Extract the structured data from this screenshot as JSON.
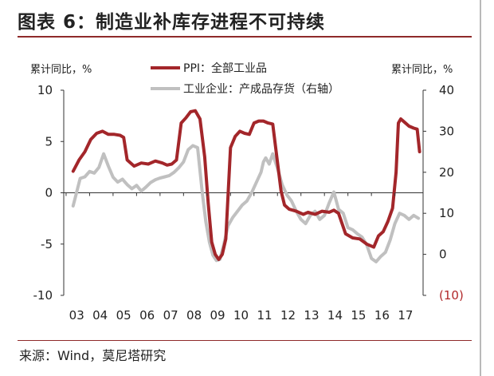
{
  "header": {
    "title": "图表 6：制造业补库存进程不可持续"
  },
  "footer": {
    "source": "来源：Wind，莫尼塔研究"
  },
  "chart_data": {
    "type": "line",
    "ylabel_left": "累计同比，%",
    "ylabel_right": "累计同比，%",
    "legend_position": "top-center",
    "grid": false,
    "x_tick_labels": [
      "03",
      "04",
      "05",
      "06",
      "07",
      "08",
      "09",
      "10",
      "11",
      "12",
      "13",
      "14",
      "15",
      "16",
      "17"
    ],
    "y_left": {
      "lim": [
        -10,
        10
      ],
      "ticks": [
        -10,
        -5,
        0,
        5,
        10
      ],
      "tick_labels": [
        "-10",
        "-5",
        "0",
        "5",
        "10"
      ]
    },
    "y_right": {
      "lim": [
        -10,
        40
      ],
      "ticks": [
        -10,
        0,
        10,
        20,
        30,
        40
      ],
      "tick_labels": [
        "(10)",
        "0",
        "10",
        "20",
        "30",
        "40"
      ]
    },
    "series": [
      {
        "name": "PPI：全部工业品",
        "axis": "left",
        "color": "#a3262a",
        "x": [
          2003.0,
          2003.25,
          2003.5,
          2003.75,
          2004.0,
          2004.25,
          2004.5,
          2004.75,
          2005.0,
          2005.15,
          2005.3,
          2005.6,
          2005.9,
          2006.2,
          2006.5,
          2006.8,
          2007.0,
          2007.2,
          2007.4,
          2007.6,
          2007.8,
          2008.0,
          2008.2,
          2008.4,
          2008.6,
          2008.75,
          2008.9,
          2009.05,
          2009.2,
          2009.35,
          2009.5,
          2009.7,
          2009.9,
          2010.1,
          2010.3,
          2010.5,
          2010.7,
          2010.9,
          2011.1,
          2011.3,
          2011.5,
          2011.7,
          2011.85,
          2012.0,
          2012.2,
          2012.5,
          2012.8,
          2013.0,
          2013.3,
          2013.6,
          2013.9,
          2014.1,
          2014.3,
          2014.6,
          2014.9,
          2015.2,
          2015.5,
          2015.8,
          2016.0,
          2016.2,
          2016.4,
          2016.6,
          2016.75,
          2016.85,
          2016.95,
          2017.1,
          2017.3,
          2017.5,
          2017.65,
          2017.75
        ],
        "values": [
          2.1,
          3.2,
          4.0,
          5.2,
          5.8,
          6.0,
          5.7,
          5.7,
          5.6,
          5.4,
          3.2,
          2.6,
          2.9,
          2.8,
          3.1,
          2.9,
          2.7,
          2.8,
          3.2,
          6.8,
          7.3,
          7.9,
          8.0,
          7.2,
          3.5,
          -1.0,
          -4.8,
          -6.0,
          -6.5,
          -6.0,
          -4.5,
          4.4,
          5.5,
          6.0,
          5.8,
          5.7,
          6.8,
          7.0,
          7.0,
          6.8,
          6.7,
          3.0,
          0.2,
          -1.2,
          -1.6,
          -1.8,
          -2.1,
          -1.9,
          -2.1,
          -1.8,
          -1.9,
          -1.7,
          -2.0,
          -4.0,
          -4.4,
          -4.5,
          -5.0,
          -5.3,
          -4.2,
          -3.8,
          -2.8,
          -1.5,
          2.0,
          6.8,
          7.2,
          6.9,
          6.5,
          6.3,
          6.2,
          4.0
        ]
      },
      {
        "name": "工业企业：产成品存货（右轴）",
        "axis": "right",
        "color": "#c0c0c0",
        "x": [
          2003.0,
          2003.1,
          2003.3,
          2003.5,
          2003.7,
          2003.9,
          2004.1,
          2004.3,
          2004.5,
          2004.7,
          2004.9,
          2005.1,
          2005.3,
          2005.5,
          2005.7,
          2005.9,
          2006.1,
          2006.3,
          2006.5,
          2006.7,
          2006.9,
          2007.1,
          2007.3,
          2007.5,
          2007.7,
          2007.9,
          2008.1,
          2008.3,
          2008.5,
          2008.65,
          2008.8,
          2008.95,
          2009.1,
          2009.25,
          2009.4,
          2009.6,
          2009.8,
          2010.0,
          2010.2,
          2010.4,
          2010.6,
          2010.8,
          2011.0,
          2011.1,
          2011.2,
          2011.35,
          2011.5,
          2011.7,
          2011.9,
          2012.1,
          2012.3,
          2012.5,
          2012.7,
          2012.9,
          2013.1,
          2013.3,
          2013.5,
          2013.7,
          2013.9,
          2014.1,
          2014.3,
          2014.5,
          2014.7,
          2014.9,
          2015.1,
          2015.3,
          2015.5,
          2015.7,
          2015.9,
          2016.1,
          2016.3,
          2016.5,
          2016.7,
          2016.9,
          2017.1,
          2017.3,
          2017.5,
          2017.7
        ],
        "values": [
          11.8,
          14.0,
          18.5,
          18.9,
          20.2,
          19.8,
          21.2,
          24.5,
          21.5,
          18.8,
          17.6,
          18.3,
          17.0,
          16.0,
          16.8,
          15.4,
          16.4,
          17.5,
          18.2,
          18.6,
          18.9,
          19.2,
          20.0,
          21.1,
          22.5,
          25.5,
          26.5,
          26.0,
          15.0,
          8.0,
          3.0,
          -0.2,
          -1.5,
          -1.2,
          2.0,
          7.0,
          9.0,
          10.5,
          12.0,
          13.0,
          15.0,
          17.5,
          20.0,
          22.5,
          23.5,
          22.0,
          24.5,
          21.0,
          17.0,
          14.5,
          13.0,
          10.5,
          8.5,
          7.5,
          9.5,
          10.5,
          8.5,
          9.5,
          12.5,
          15.2,
          11.0,
          10.0,
          6.5,
          6.0,
          5.0,
          4.2,
          2.3,
          -1.0,
          -1.8,
          -0.5,
          0.5,
          3.5,
          7.5,
          10.0,
          9.5,
          8.5,
          9.5,
          8.8
        ]
      }
    ]
  }
}
